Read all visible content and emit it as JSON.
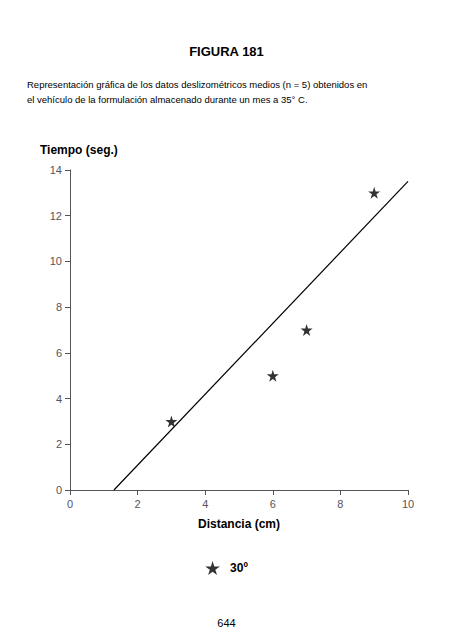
{
  "chart_data": {
    "type": "scatter",
    "title": "FIGURA 181",
    "subtitle": [
      "Representación gráfica de los datos deslizométricos medios (n = 5) obtenidos en",
      "el vehículo de la formulación almacenado durante un mes a 35° C."
    ],
    "annotations": [
      "644"
    ],
    "xlabel": "Distancia (cm)",
    "ylabel": "Tiempo (seg.)",
    "xlim": [
      0,
      10
    ],
    "ylim": [
      0,
      14
    ],
    "xticks": [
      0,
      2,
      4,
      6,
      8,
      10
    ],
    "yticks": [
      0,
      2,
      4,
      6,
      8,
      10,
      12,
      14
    ],
    "grid": false,
    "legend": "bottom",
    "series": [
      {
        "type": "line",
        "color": "#000000",
        "x": [
          1.3,
          10.0
        ],
        "values": [
          0.0,
          13.5
        ]
      },
      {
        "name": "30º",
        "type": "scatter",
        "marker": "star",
        "color": "#000000",
        "x": [
          3.0,
          6.0,
          7.0,
          9.0
        ],
        "values": [
          3.0,
          5.0,
          7.0,
          13.0
        ]
      }
    ]
  }
}
